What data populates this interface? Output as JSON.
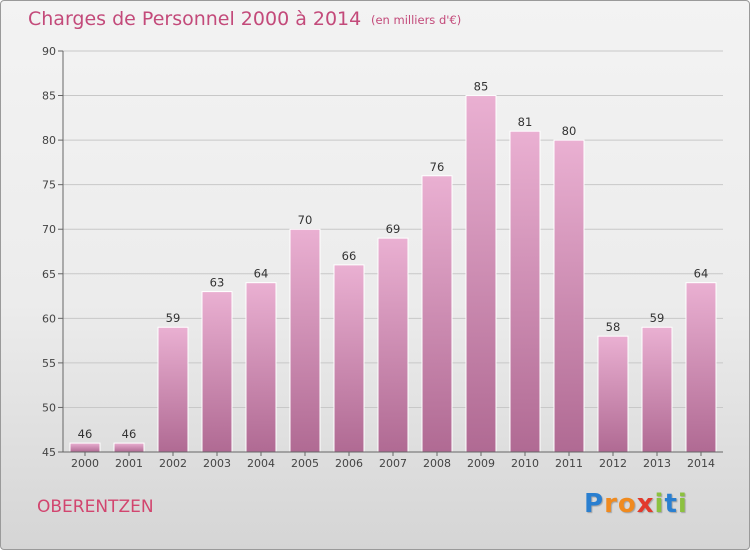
{
  "header": {
    "title": "Charges de Personnel 2000 à 2014",
    "subtitle": "(en milliers d'€)"
  },
  "footer": {
    "commune": "OBERENTZEN",
    "brand": {
      "letters": [
        "P",
        "r",
        "o",
        "x",
        "i",
        "t",
        "i"
      ],
      "colors": [
        "#2a7fd0",
        "#f08a1e",
        "#f08a1e",
        "#e23a2c",
        "#8cc13f",
        "#2a7fd0",
        "#8cc13f"
      ]
    }
  },
  "colors": {
    "bar_top": "#eab0d2",
    "bar_bottom": "#b06a93",
    "title": "#c34a7a"
  },
  "chart_data": {
    "type": "bar",
    "title": "Charges de Personnel 2000 à 2014",
    "subtitle": "(en milliers d'€)",
    "categories": [
      "2000",
      "2001",
      "2002",
      "2003",
      "2004",
      "2005",
      "2006",
      "2007",
      "2008",
      "2009",
      "2010",
      "2011",
      "2012",
      "2013",
      "2014"
    ],
    "values": [
      46,
      46,
      59,
      63,
      64,
      70,
      66,
      69,
      76,
      85,
      81,
      80,
      58,
      59,
      64
    ],
    "ylim": [
      45,
      90
    ],
    "yticks": [
      45,
      50,
      55,
      60,
      65,
      70,
      75,
      80,
      85,
      90
    ],
    "grid": true,
    "legend": false
  }
}
